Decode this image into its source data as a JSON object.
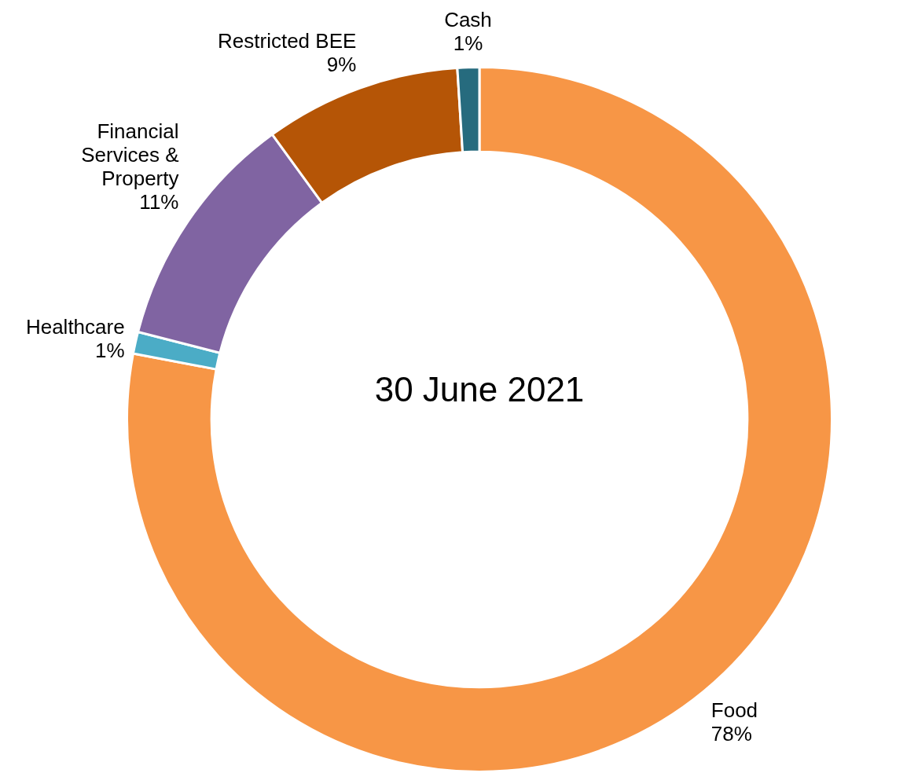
{
  "chart_data": {
    "type": "donut",
    "title": "30 June 2021",
    "categories": [
      "Food",
      "Healthcare",
      "Financial Services & Property",
      "Restricted BEE",
      "Cash"
    ],
    "values": [
      78,
      1,
      11,
      9,
      1
    ],
    "value_labels": [
      "78%",
      "1%",
      "11%",
      "9%",
      "1%"
    ],
    "colors": [
      "#f79646",
      "#4bacc6",
      "#8064a2",
      "#b55506",
      "#266b7e"
    ],
    "legend": false
  }
}
